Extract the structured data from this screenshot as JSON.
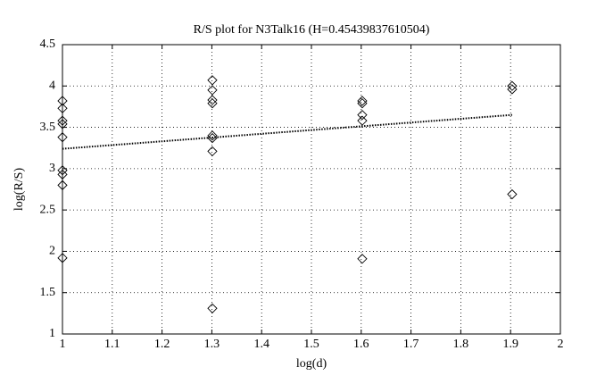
{
  "chart_data": {
    "type": "scatter",
    "title": "R/S plot for N3Talk16 (H=0.45439837610504)",
    "x_label": "log(d)",
    "y_label": "log(R/S)",
    "xlim": [
      1,
      2
    ],
    "xticks": [
      1,
      1.1,
      1.2,
      1.3,
      1.4,
      1.5,
      1.6,
      1.7,
      1.8,
      1.9,
      2
    ],
    "ylim": [
      1,
      4.5
    ],
    "yticks": [
      1,
      1.5,
      2,
      2.5,
      3,
      3.5,
      4,
      4.5
    ],
    "grid": true,
    "series": [
      {
        "type": "scatter",
        "marker": "diamond",
        "color": "#000000",
        "x": [
          1,
          1,
          1,
          1,
          1,
          1,
          1,
          1,
          1,
          1.30103,
          1.30103,
          1.30103,
          1.30103,
          1.30103,
          1.30103,
          1.30103,
          1.30103,
          1.60206,
          1.60206,
          1.60206,
          1.60206,
          1.60206,
          1.90309,
          1.90309,
          1.90309
        ],
        "values": [
          3.82,
          3.73,
          3.58,
          3.54,
          3.38,
          2.98,
          2.93,
          2.8,
          1.92,
          4.07,
          3.95,
          3.83,
          3.79,
          3.4,
          3.37,
          3.21,
          1.31,
          3.82,
          3.79,
          3.65,
          3.58,
          1.91,
          4.0,
          3.96,
          2.69
        ]
      },
      {
        "type": "line",
        "linestyle": "dotted",
        "color": "#000000",
        "x": [
          1,
          1.90309
        ],
        "values": [
          3.24,
          3.65
        ]
      }
    ]
  }
}
